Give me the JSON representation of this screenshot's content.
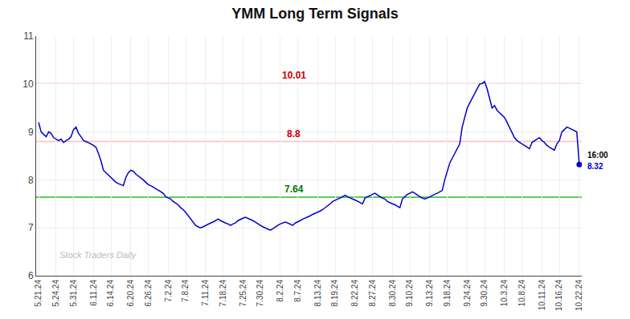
{
  "chart_data": {
    "type": "line",
    "title": "YMM Long Term Signals",
    "categories": [
      "5.21.24",
      null,
      null,
      null,
      null,
      null,
      null,
      "5.24.24",
      null,
      null,
      null,
      null,
      null,
      null,
      "5.31.24",
      null,
      null,
      null,
      null,
      null,
      null,
      null,
      "6.11.24",
      null,
      null,
      null,
      null,
      null,
      null,
      "6.14.24",
      null,
      null,
      null,
      null,
      null,
      null,
      null,
      "6.20.24",
      null,
      null,
      null,
      null,
      null,
      null,
      "6.26.24",
      null,
      null,
      null,
      null,
      null,
      null,
      null,
      "7.2.24",
      null,
      null,
      null,
      null,
      null,
      null,
      "7.8.24",
      null,
      null,
      null,
      null,
      null,
      null,
      null,
      "7.11.24",
      null,
      null,
      null,
      null,
      null,
      null,
      "7.18.24",
      null,
      null,
      null,
      null,
      null,
      null,
      null,
      "7.25.24",
      null,
      null,
      null,
      null,
      null,
      null,
      "7.30.24",
      null,
      null,
      null,
      null,
      null,
      null,
      null,
      "8.2.24",
      null,
      null,
      null,
      null,
      null,
      null,
      "8.7.24",
      null,
      null,
      null,
      null,
      null,
      null,
      null,
      "8.13.24",
      null,
      null,
      null,
      null,
      null,
      null,
      "8.19.24",
      null,
      null,
      null,
      null,
      null,
      null,
      null,
      "8.22.24",
      null,
      null,
      null,
      null,
      null,
      null,
      "8.27.24",
      null,
      null,
      null,
      null,
      null,
      null,
      null,
      "8.30.24",
      null,
      null,
      null,
      null,
      null,
      null,
      "9.10.24",
      null,
      null,
      null,
      null,
      null,
      null,
      null,
      "9.13.24",
      null,
      null,
      null,
      null,
      null,
      null,
      "9.18.24",
      null,
      null,
      null,
      null,
      null,
      null,
      null,
      "9.24.24",
      null,
      null,
      null,
      null,
      null,
      null,
      "9.30.24",
      null,
      null,
      null,
      null,
      null,
      null,
      null,
      "10.3.24",
      null,
      null,
      null,
      null,
      null,
      null,
      "10.8.24",
      null,
      null,
      null,
      null,
      null,
      null,
      null,
      "10.11.24",
      null,
      null,
      null,
      null,
      null,
      null,
      "10.16.24",
      null,
      null,
      null,
      null,
      null,
      null,
      null,
      "10.22.24"
    ],
    "values": [
      9.2,
      9.0,
      8.95,
      8.9,
      9.0,
      8.97,
      8.88,
      8.85,
      8.82,
      8.85,
      8.78,
      8.82,
      8.85,
      8.9,
      9.05,
      9.1,
      8.97,
      8.9,
      8.82,
      8.8,
      8.78,
      8.75,
      8.72,
      8.68,
      8.55,
      8.4,
      8.2,
      8.15,
      8.1,
      8.05,
      8.0,
      7.95,
      7.92,
      7.9,
      7.88,
      8.05,
      8.15,
      8.2,
      8.18,
      8.12,
      8.08,
      8.05,
      8.0,
      7.95,
      7.9,
      7.88,
      7.85,
      7.82,
      7.78,
      7.75,
      7.72,
      7.65,
      7.62,
      7.6,
      7.55,
      7.52,
      7.48,
      7.42,
      7.38,
      7.32,
      7.25,
      7.18,
      7.1,
      7.05,
      7.02,
      7.0,
      7.02,
      7.05,
      7.08,
      7.1,
      7.12,
      7.15,
      7.18,
      7.15,
      7.12,
      7.1,
      7.08,
      7.05,
      7.08,
      7.1,
      7.15,
      7.18,
      7.2,
      7.22,
      7.2,
      7.18,
      7.15,
      7.12,
      7.08,
      7.05,
      7.02,
      7.0,
      6.98,
      6.95,
      6.98,
      7.02,
      7.05,
      7.08,
      7.1,
      7.12,
      7.1,
      7.08,
      7.05,
      7.1,
      7.12,
      7.15,
      7.18,
      7.2,
      7.22,
      7.25,
      7.28,
      7.3,
      7.32,
      7.35,
      7.38,
      7.42,
      7.45,
      7.5,
      7.55,
      7.58,
      7.6,
      7.62,
      7.65,
      7.68,
      7.65,
      7.62,
      7.6,
      7.58,
      7.55,
      7.52,
      7.5,
      7.62,
      7.65,
      7.68,
      7.7,
      7.72,
      7.68,
      7.65,
      7.62,
      7.6,
      7.55,
      7.52,
      7.5,
      7.48,
      7.45,
      7.42,
      7.6,
      7.65,
      7.7,
      7.72,
      7.75,
      7.72,
      7.68,
      7.65,
      7.62,
      7.6,
      7.62,
      7.65,
      7.68,
      7.7,
      7.72,
      7.75,
      7.78,
      8.0,
      8.2,
      8.35,
      8.45,
      8.55,
      8.65,
      8.75,
      9.1,
      9.3,
      9.5,
      9.6,
      9.7,
      9.82,
      9.9,
      10.0,
      10.01,
      10.05,
      9.9,
      9.7,
      9.5,
      9.55,
      9.45,
      9.4,
      9.35,
      9.3,
      9.2,
      9.1,
      9.0,
      8.88,
      8.82,
      8.78,
      8.75,
      8.72,
      8.68,
      8.65,
      8.78,
      8.82,
      8.85,
      8.88,
      8.82,
      8.78,
      8.72,
      8.68,
      8.65,
      8.62,
      8.75,
      8.82,
      9.0,
      9.05,
      9.1,
      9.08,
      9.05,
      9.02,
      9.0,
      8.32
    ],
    "color": "#0000cc",
    "ylim": [
      6,
      11
    ],
    "yticks": [
      6,
      7,
      8,
      9,
      10,
      11
    ],
    "grid": true,
    "hlines": [
      {
        "value": 10.01,
        "label": "10.01",
        "color": "#ffbbbb",
        "label_color": "#cc0000"
      },
      {
        "value": 8.8,
        "label": "8.8",
        "color": "#ffbbbb",
        "label_color": "#cc0000"
      },
      {
        "value": 7.64,
        "label": "7.64",
        "color": "#22bb22",
        "label_color": "#007700"
      }
    ],
    "last_labels": [
      {
        "text": "16:00"
      },
      {
        "text": "8.32",
        "color": "#0000cc"
      }
    ],
    "watermark": {
      "text": "Stock Traders Daily",
      "color": "#bbbbbb"
    }
  }
}
